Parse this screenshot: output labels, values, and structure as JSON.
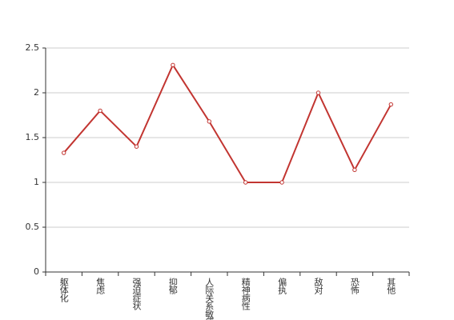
{
  "chart_data": {
    "type": "line",
    "categories": [
      "躯体化",
      "焦虑",
      "强迫症状",
      "抑郁",
      "人际关系敏感",
      "精神病性",
      "偏执",
      "敌对",
      "恐怖",
      "其他"
    ],
    "series": [
      {
        "color": "#c23531",
        "values": [
          1.33,
          1.8,
          1.4,
          2.31,
          1.68,
          1.0,
          1.0,
          2.0,
          1.14,
          1.87
        ]
      }
    ],
    "ylim": [
      0,
      2.5
    ],
    "yticks": [
      0,
      0.5,
      1,
      1.5,
      2,
      2.5
    ],
    "grid": true
  }
}
